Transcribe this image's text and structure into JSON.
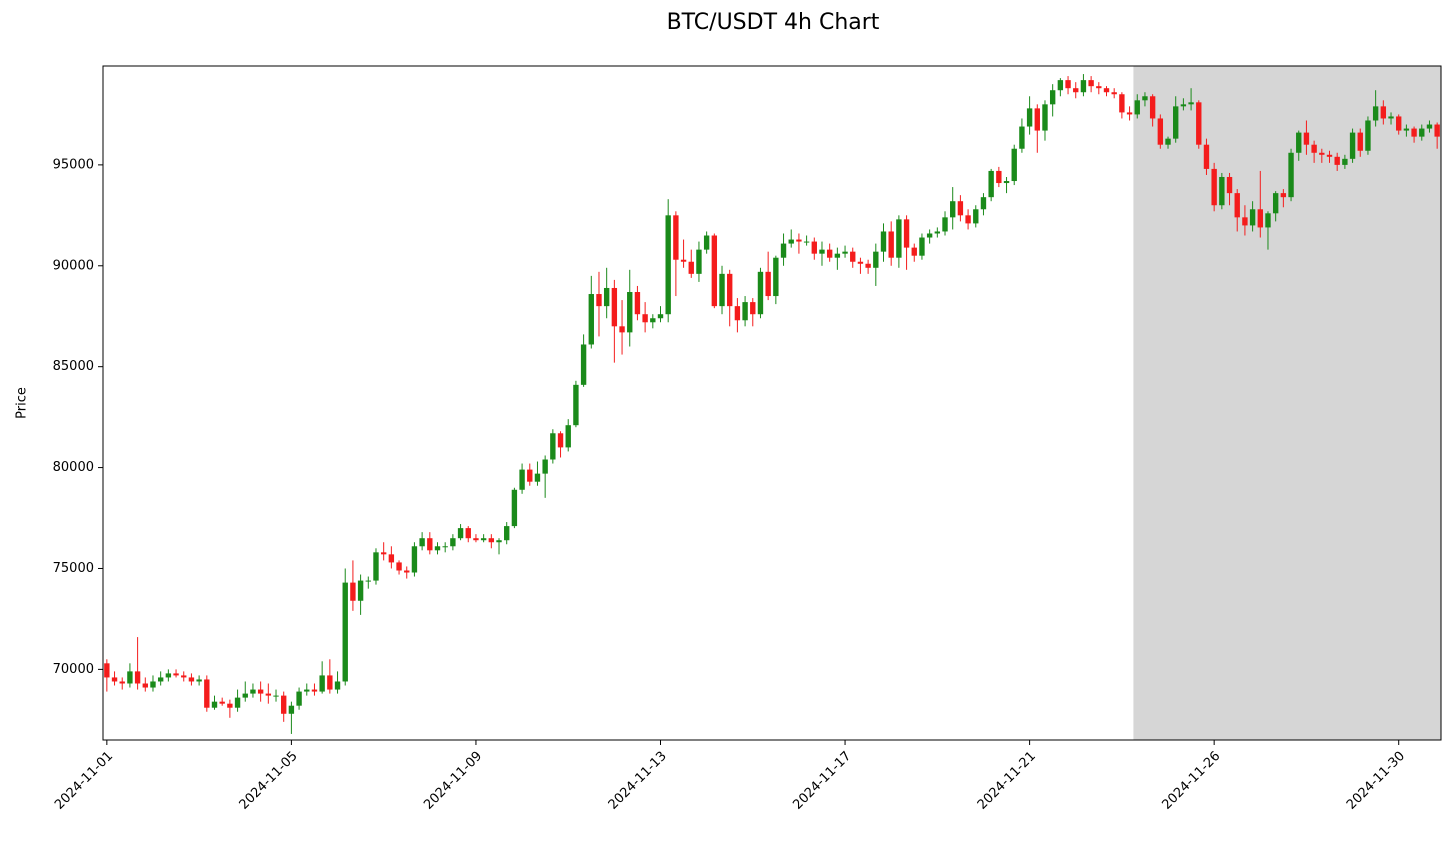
{
  "chart_data": {
    "type": "candlestick",
    "title": "BTC/USDT 4h Chart",
    "y_label": "Price",
    "categories": [
      "2024-11-01",
      null,
      null,
      null,
      null,
      null,
      null,
      null,
      null,
      null,
      null,
      null,
      null,
      null,
      null,
      null,
      null,
      null,
      null,
      null,
      null,
      null,
      null,
      null,
      "2024-11-05",
      null,
      null,
      null,
      null,
      null,
      null,
      null,
      null,
      null,
      null,
      null,
      null,
      null,
      null,
      null,
      null,
      null,
      null,
      null,
      null,
      null,
      null,
      null,
      "2024-11-09",
      null,
      null,
      null,
      null,
      null,
      null,
      null,
      null,
      null,
      null,
      null,
      null,
      null,
      null,
      null,
      null,
      null,
      null,
      null,
      null,
      null,
      null,
      null,
      "2024-11-13",
      null,
      null,
      null,
      null,
      null,
      null,
      null,
      null,
      null,
      null,
      null,
      null,
      null,
      null,
      null,
      null,
      null,
      null,
      null,
      null,
      null,
      null,
      null,
      "2024-11-17",
      null,
      null,
      null,
      null,
      null,
      null,
      null,
      null,
      null,
      null,
      null,
      null,
      null,
      null,
      null,
      null,
      null,
      null,
      null,
      null,
      null,
      null,
      null,
      "2024-11-21",
      null,
      null,
      null,
      null,
      null,
      null,
      null,
      null,
      null,
      null,
      null,
      null,
      null,
      null,
      null,
      null,
      null,
      null,
      null,
      null,
      null,
      null,
      null,
      "2024-11-26",
      null,
      null,
      null,
      null,
      null,
      null,
      null,
      null,
      null,
      null,
      null,
      null,
      null,
      null,
      null,
      null,
      null,
      null,
      null,
      null,
      null,
      null,
      null,
      "2024-11-30",
      null,
      null,
      null,
      null,
      null
    ],
    "open": [
      70300,
      69600,
      69400,
      69300,
      69900,
      69300,
      69100,
      69400,
      69600,
      69800,
      69700,
      69600,
      69400,
      69500,
      68100,
      68400,
      68300,
      68100,
      68600,
      68800,
      69000,
      68800,
      68700,
      68700,
      67800,
      68200,
      68900,
      69000,
      68900,
      69700,
      69000,
      69400,
      74300,
      73400,
      74400,
      74400,
      75800,
      75700,
      75300,
      74900,
      74800,
      76100,
      76500,
      75900,
      76100,
      76100,
      76500,
      77000,
      76500,
      76400,
      76500,
      76300,
      76400,
      77100,
      78900,
      79900,
      79300,
      79700,
      80400,
      81700,
      81000,
      82100,
      84100,
      86100,
      88600,
      88000,
      88900,
      87000,
      86700,
      88700,
      87600,
      87200,
      87400,
      87600,
      92500,
      90300,
      90200,
      89600,
      90800,
      91500,
      88000,
      89600,
      88000,
      87300,
      88200,
      87600,
      89700,
      88500,
      90400,
      91100,
      91300,
      91200,
      91200,
      90600,
      90800,
      90400,
      90600,
      90700,
      90200,
      90100,
      89900,
      90700,
      91700,
      90400,
      92300,
      90900,
      90500,
      91400,
      91600,
      91700,
      92400,
      93200,
      92500,
      92100,
      92800,
      93400,
      94700,
      94100,
      94200,
      95800,
      96900,
      97800,
      96700,
      98000,
      98700,
      99200,
      98800,
      98600,
      99200,
      98900,
      98800,
      98600,
      98500,
      97600,
      97500,
      98200,
      98400,
      97300,
      96000,
      96300,
      97900,
      98000,
      98100,
      96000,
      94800,
      93000,
      94400,
      93600,
      92400,
      92000,
      92800,
      91900,
      92600,
      93600,
      93400,
      95600,
      96600,
      96000,
      95600,
      95500,
      95400,
      95000,
      95300,
      96600,
      95700,
      97200,
      97900,
      97300,
      97400,
      96700,
      96800,
      96400,
      96800,
      97000
    ],
    "high": [
      70500,
      69900,
      69600,
      70300,
      71600,
      69600,
      69700,
      69900,
      70000,
      70000,
      69900,
      69800,
      69700,
      69700,
      68700,
      68600,
      68500,
      69000,
      69400,
      69300,
      69400,
      69300,
      69000,
      68900,
      68400,
      69100,
      69300,
      69300,
      70400,
      70500,
      69900,
      75000,
      75400,
      74700,
      74600,
      76000,
      76300,
      76100,
      75400,
      75100,
      76300,
      76800,
      76800,
      76300,
      76300,
      76700,
      77200,
      77100,
      76700,
      76700,
      76700,
      76500,
      77300,
      79000,
      80200,
      80200,
      80300,
      80600,
      81900,
      81800,
      82400,
      84300,
      86600,
      89500,
      89700,
      89900,
      89300,
      88300,
      89800,
      89000,
      88200,
      87600,
      88000,
      93300,
      92700,
      91300,
      90800,
      91200,
      91700,
      91600,
      90000,
      89800,
      88400,
      88500,
      88400,
      89900,
      90700,
      90500,
      91600,
      91800,
      91600,
      91500,
      91400,
      91200,
      91100,
      90900,
      91000,
      90900,
      90400,
      90300,
      91100,
      92100,
      92200,
      92500,
      92500,
      91100,
      91600,
      91800,
      91900,
      92700,
      93900,
      93500,
      92800,
      93000,
      93600,
      94800,
      94900,
      94400,
      96000,
      97300,
      98400,
      98000,
      98200,
      99000,
      99300,
      99400,
      99100,
      99500,
      99400,
      99100,
      98900,
      98800,
      98600,
      97900,
      98500,
      98600,
      98500,
      97500,
      96400,
      98400,
      98300,
      98800,
      98200,
      96300,
      95100,
      94600,
      94600,
      93800,
      93000,
      93200,
      94700,
      92700,
      93700,
      93800,
      95800,
      96700,
      97200,
      96200,
      95800,
      95700,
      95600,
      95500,
      96800,
      96800,
      97400,
      98700,
      98200,
      97600,
      97500,
      97000,
      96900,
      97000,
      97200,
      97100
    ],
    "low": [
      68900,
      69200,
      69000,
      69100,
      69000,
      68900,
      68900,
      69200,
      69400,
      69600,
      69400,
      69200,
      69200,
      67900,
      68000,
      68200,
      67600,
      67900,
      68400,
      68600,
      68400,
      68300,
      68400,
      67400,
      66800,
      68000,
      68700,
      68700,
      68800,
      68800,
      68800,
      69200,
      72900,
      72700,
      74000,
      74200,
      75400,
      75000,
      74700,
      74500,
      74600,
      75900,
      75700,
      75700,
      75800,
      75900,
      76400,
      76300,
      76300,
      76300,
      76000,
      75700,
      76200,
      77000,
      78700,
      79100,
      79100,
      78500,
      80200,
      80500,
      80800,
      82000,
      84000,
      85900,
      86500,
      87400,
      85200,
      85600,
      86000,
      87300,
      86700,
      86900,
      87200,
      87200,
      88500,
      89900,
      89400,
      89200,
      90600,
      87900,
      87600,
      87000,
      86700,
      87000,
      87000,
      87400,
      88300,
      88100,
      90000,
      90900,
      90600,
      91000,
      90300,
      90000,
      90200,
      89800,
      90400,
      89900,
      89600,
      89600,
      89000,
      90200,
      90000,
      89900,
      89800,
      90200,
      90300,
      91100,
      91400,
      91500,
      91800,
      92200,
      91800,
      91900,
      92500,
      93200,
      93900,
      93600,
      94000,
      95600,
      96500,
      95600,
      96200,
      97400,
      98400,
      98500,
      98300,
      98400,
      98600,
      98500,
      98400,
      98300,
      97300,
      97200,
      97300,
      97900,
      96900,
      95800,
      95800,
      96100,
      97700,
      97700,
      95800,
      94500,
      92700,
      92800,
      93000,
      91700,
      91500,
      91700,
      91400,
      90800,
      92200,
      92900,
      93200,
      95200,
      95500,
      95100,
      95100,
      95100,
      94700,
      94800,
      95100,
      95400,
      95500,
      96900,
      97000,
      97000,
      96500,
      96400,
      96100,
      96200,
      96600,
      95800
    ],
    "close": [
      69600,
      69400,
      69300,
      69900,
      69300,
      69100,
      69400,
      69600,
      69800,
      69700,
      69600,
      69400,
      69500,
      68100,
      68400,
      68300,
      68100,
      68600,
      68800,
      69000,
      68800,
      68700,
      68700,
      67800,
      68200,
      68900,
      69000,
      68900,
      69700,
      69000,
      69400,
      74300,
      73400,
      74400,
      74400,
      75800,
      75700,
      75300,
      74900,
      74800,
      76100,
      76500,
      75900,
      76100,
      76100,
      76500,
      77000,
      76500,
      76400,
      76500,
      76300,
      76400,
      77100,
      78900,
      79900,
      79300,
      79700,
      80400,
      81700,
      81000,
      82100,
      84100,
      86100,
      88600,
      88000,
      88900,
      87000,
      86700,
      88700,
      87600,
      87200,
      87400,
      87600,
      92500,
      90300,
      90200,
      89600,
      90800,
      91500,
      88000,
      89600,
      88000,
      87300,
      88200,
      87600,
      89700,
      88500,
      90400,
      91100,
      91300,
      91200,
      91200,
      90600,
      90800,
      90400,
      90600,
      90700,
      90200,
      90100,
      89900,
      90700,
      91700,
      90400,
      92300,
      90900,
      90500,
      91400,
      91600,
      91700,
      92400,
      93200,
      92500,
      92100,
      92800,
      93400,
      94700,
      94100,
      94200,
      95800,
      96900,
      97800,
      96700,
      98000,
      98700,
      99200,
      98800,
      98600,
      99200,
      98900,
      98800,
      98600,
      98500,
      97600,
      97500,
      98200,
      98400,
      97300,
      96000,
      96300,
      97900,
      98000,
      98100,
      96000,
      94800,
      93000,
      94400,
      93600,
      92400,
      92000,
      92800,
      91900,
      92600,
      93600,
      93400,
      95600,
      96600,
      96000,
      95600,
      95500,
      95400,
      95000,
      95300,
      96600,
      95700,
      97200,
      97900,
      97300,
      97400,
      96700,
      96800,
      96400,
      96800,
      97000,
      96400
    ],
    "up_color": "#1a8a1a",
    "down_color": "#f41c1c",
    "highlight": {
      "from": 134,
      "color": "#d6d6d6"
    },
    "ylim": [
      66500,
      99900
    ],
    "yticks": [
      70000,
      75000,
      80000,
      85000,
      90000,
      95000
    ]
  }
}
